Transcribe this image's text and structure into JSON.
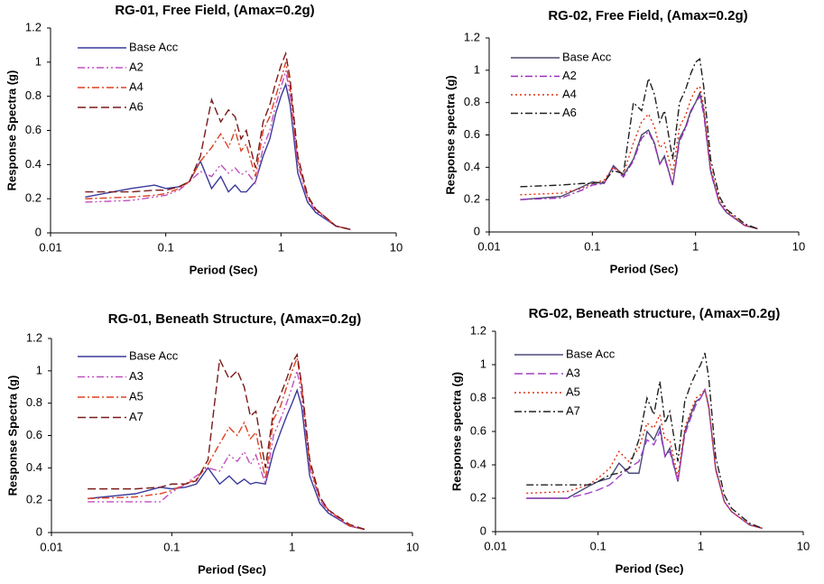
{
  "chart_data": [
    {
      "type": "line",
      "title": "RG-01, Free Field, (Amax=0.2g)",
      "x_label": "Period (Sec)",
      "y_label": "Response Spectra (g)",
      "xscale": "log",
      "xlim": [
        0.01,
        10
      ],
      "xticks": [
        0.01,
        0.1,
        1,
        10
      ],
      "ylim": [
        0,
        1.2
      ],
      "yticks": [
        0,
        0.2,
        0.4,
        0.6,
        0.8,
        1,
        1.2
      ],
      "grid": false,
      "legend": "upper left",
      "x": [
        0.02,
        0.05,
        0.08,
        0.1,
        0.13,
        0.16,
        0.2,
        0.25,
        0.3,
        0.35,
        0.4,
        0.45,
        0.5,
        0.6,
        0.7,
        0.8,
        0.9,
        1.0,
        1.1,
        1.2,
        1.4,
        1.7,
        2,
        3,
        4
      ],
      "series": [
        {
          "name": "Base Acc",
          "color": "#3a3a9c",
          "style": "solid",
          "values": [
            0.21,
            0.26,
            0.28,
            0.26,
            0.27,
            0.3,
            0.42,
            0.26,
            0.33,
            0.24,
            0.28,
            0.24,
            0.24,
            0.3,
            0.45,
            0.55,
            0.7,
            0.8,
            0.87,
            0.75,
            0.35,
            0.18,
            0.12,
            0.04,
            0.02
          ]
        },
        {
          "name": "A2",
          "color": "#c050c0",
          "style": "dash-dot-dot",
          "values": [
            0.18,
            0.19,
            0.21,
            0.22,
            0.25,
            0.3,
            0.36,
            0.33,
            0.4,
            0.35,
            0.38,
            0.34,
            0.36,
            0.29,
            0.5,
            0.6,
            0.75,
            0.85,
            0.95,
            0.8,
            0.4,
            0.2,
            0.13,
            0.04,
            0.02
          ]
        },
        {
          "name": "A4",
          "color": "#e04020",
          "style": "dash-dot",
          "values": [
            0.2,
            0.21,
            0.22,
            0.23,
            0.26,
            0.3,
            0.42,
            0.5,
            0.58,
            0.5,
            0.6,
            0.48,
            0.52,
            0.33,
            0.6,
            0.68,
            0.8,
            0.9,
            1.0,
            0.85,
            0.42,
            0.21,
            0.14,
            0.04,
            0.02
          ]
        },
        {
          "name": "A6",
          "color": "#7b1a1a",
          "style": "dash",
          "values": [
            0.24,
            0.24,
            0.25,
            0.25,
            0.27,
            0.3,
            0.45,
            0.78,
            0.65,
            0.72,
            0.68,
            0.55,
            0.6,
            0.38,
            0.65,
            0.75,
            0.88,
            0.98,
            1.05,
            0.9,
            0.45,
            0.22,
            0.14,
            0.04,
            0.02
          ]
        }
      ]
    },
    {
      "type": "line",
      "title": "RG-02, Free Field, (Amax=0.2g)",
      "x_label": "Period (Sec)",
      "y_label": "Response spectra (g)",
      "xscale": "log",
      "xlim": [
        0.01,
        10
      ],
      "xticks": [
        0.01,
        0.1,
        1,
        10
      ],
      "ylim": [
        0,
        1.2
      ],
      "yticks": [
        0,
        0.2,
        0.4,
        0.6,
        0.8,
        1,
        1.2
      ],
      "grid": false,
      "legend": "upper left",
      "x": [
        0.02,
        0.05,
        0.08,
        0.1,
        0.13,
        0.16,
        0.2,
        0.25,
        0.3,
        0.35,
        0.4,
        0.45,
        0.5,
        0.6,
        0.7,
        0.8,
        0.9,
        1.0,
        1.1,
        1.2,
        1.4,
        1.7,
        2,
        3,
        4
      ],
      "series": [
        {
          "name": "Base Acc",
          "color": "#4a4a6a",
          "style": "solid",
          "values": [
            0.2,
            0.22,
            0.28,
            0.31,
            0.3,
            0.41,
            0.35,
            0.45,
            0.6,
            0.63,
            0.55,
            0.42,
            0.47,
            0.29,
            0.58,
            0.65,
            0.75,
            0.8,
            0.86,
            0.75,
            0.38,
            0.18,
            0.12,
            0.04,
            0.02
          ]
        },
        {
          "name": "A2",
          "color": "#9a30c0",
          "style": "dash-dot",
          "values": [
            0.2,
            0.21,
            0.26,
            0.29,
            0.3,
            0.4,
            0.34,
            0.44,
            0.58,
            0.62,
            0.54,
            0.42,
            0.46,
            0.29,
            0.56,
            0.64,
            0.74,
            0.8,
            0.84,
            0.73,
            0.37,
            0.18,
            0.12,
            0.04,
            0.02
          ]
        },
        {
          "name": "A4",
          "color": "#e03010",
          "style": "dot",
          "values": [
            0.23,
            0.24,
            0.27,
            0.3,
            0.32,
            0.4,
            0.36,
            0.55,
            0.68,
            0.73,
            0.65,
            0.52,
            0.55,
            0.36,
            0.65,
            0.72,
            0.82,
            0.88,
            0.9,
            0.78,
            0.4,
            0.2,
            0.13,
            0.04,
            0.02
          ]
        },
        {
          "name": "A6",
          "color": "#202020",
          "style": "dash-dot",
          "values": [
            0.28,
            0.29,
            0.3,
            0.3,
            0.31,
            0.38,
            0.36,
            0.8,
            0.75,
            0.95,
            0.85,
            0.68,
            0.75,
            0.45,
            0.8,
            0.88,
            0.98,
            1.05,
            1.07,
            0.9,
            0.45,
            0.22,
            0.14,
            0.05,
            0.02
          ]
        }
      ]
    },
    {
      "type": "line",
      "title": "RG-01, Beneath Structure, (Amax=0.2g)",
      "x_label": "Period (Sec)",
      "y_label": "Response Spectra (g)",
      "xscale": "log",
      "xlim": [
        0.01,
        10
      ],
      "xticks": [
        0.01,
        0.1,
        1,
        10
      ],
      "ylim": [
        0,
        1.2
      ],
      "yticks": [
        0,
        0.2,
        0.4,
        0.6,
        0.8,
        1,
        1.2
      ],
      "grid": false,
      "legend": "upper left",
      "x": [
        0.02,
        0.05,
        0.08,
        0.1,
        0.13,
        0.16,
        0.2,
        0.25,
        0.3,
        0.35,
        0.4,
        0.45,
        0.5,
        0.6,
        0.7,
        0.8,
        0.9,
        1.0,
        1.1,
        1.2,
        1.4,
        1.7,
        2,
        3,
        4
      ],
      "series": [
        {
          "name": "Base Acc",
          "color": "#3a3a9c",
          "style": "solid",
          "values": [
            0.21,
            0.24,
            0.28,
            0.27,
            0.28,
            0.3,
            0.4,
            0.3,
            0.35,
            0.3,
            0.33,
            0.3,
            0.31,
            0.3,
            0.5,
            0.62,
            0.72,
            0.8,
            0.88,
            0.78,
            0.35,
            0.18,
            0.12,
            0.04,
            0.02
          ]
        },
        {
          "name": "A3",
          "color": "#c050c0",
          "style": "dash-dot-dot",
          "values": [
            0.19,
            0.19,
            0.19,
            0.25,
            0.3,
            0.35,
            0.4,
            0.38,
            0.48,
            0.44,
            0.5,
            0.42,
            0.48,
            0.3,
            0.6,
            0.7,
            0.8,
            0.9,
            1.0,
            0.85,
            0.4,
            0.2,
            0.13,
            0.04,
            0.02
          ]
        },
        {
          "name": "A5",
          "color": "#e04020",
          "style": "dash-dot",
          "values": [
            0.21,
            0.22,
            0.24,
            0.26,
            0.3,
            0.33,
            0.42,
            0.55,
            0.65,
            0.6,
            0.68,
            0.58,
            0.62,
            0.33,
            0.7,
            0.78,
            0.9,
            1.0,
            1.08,
            0.9,
            0.42,
            0.21,
            0.14,
            0.04,
            0.02
          ]
        },
        {
          "name": "A7",
          "color": "#7b1a1a",
          "style": "dash",
          "values": [
            0.27,
            0.27,
            0.28,
            0.3,
            0.3,
            0.32,
            0.45,
            1.07,
            0.95,
            1.0,
            0.9,
            0.72,
            0.75,
            0.4,
            0.75,
            0.85,
            0.95,
            1.05,
            1.1,
            0.92,
            0.45,
            0.22,
            0.14,
            0.05,
            0.02
          ]
        }
      ]
    },
    {
      "type": "line",
      "title": "RG-02, Beneath structure, (Amax=0.2g)",
      "x_label": "Period (Sec)",
      "y_label": "Response spectra (g)",
      "xscale": "log",
      "xlim": [
        0.01,
        10
      ],
      "xticks": [
        0.01,
        0.1,
        1,
        10
      ],
      "ylim": [
        0,
        1.2
      ],
      "yticks": [
        0,
        0.2,
        0.4,
        0.6,
        0.8,
        1,
        1.2
      ],
      "grid": false,
      "legend": "upper left",
      "x": [
        0.02,
        0.05,
        0.08,
        0.1,
        0.13,
        0.16,
        0.2,
        0.25,
        0.3,
        0.35,
        0.4,
        0.45,
        0.5,
        0.6,
        0.7,
        0.8,
        0.9,
        1.0,
        1.1,
        1.2,
        1.4,
        1.7,
        2,
        3,
        4
      ],
      "series": [
        {
          "name": "Base Acc",
          "color": "#4a4a7a",
          "style": "solid",
          "values": [
            0.2,
            0.2,
            0.27,
            0.3,
            0.32,
            0.41,
            0.35,
            0.35,
            0.6,
            0.55,
            0.63,
            0.45,
            0.5,
            0.3,
            0.6,
            0.7,
            0.78,
            0.8,
            0.85,
            0.75,
            0.38,
            0.18,
            0.12,
            0.04,
            0.02
          ]
        },
        {
          "name": "A3",
          "color": "#a040c8",
          "style": "dash",
          "values": [
            0.2,
            0.2,
            0.23,
            0.25,
            0.28,
            0.33,
            0.38,
            0.42,
            0.55,
            0.52,
            0.6,
            0.45,
            0.48,
            0.3,
            0.58,
            0.68,
            0.76,
            0.8,
            0.85,
            0.74,
            0.37,
            0.18,
            0.12,
            0.04,
            0.02
          ]
        },
        {
          "name": "A5",
          "color": "#e03010",
          "style": "dot",
          "values": [
            0.23,
            0.24,
            0.28,
            0.32,
            0.38,
            0.48,
            0.42,
            0.5,
            0.65,
            0.62,
            0.7,
            0.55,
            0.55,
            0.33,
            0.62,
            0.72,
            0.8,
            0.82,
            0.85,
            0.75,
            0.38,
            0.18,
            0.12,
            0.04,
            0.02
          ]
        },
        {
          "name": "A7",
          "color": "#202020",
          "style": "dash-dot",
          "values": [
            0.28,
            0.28,
            0.28,
            0.3,
            0.34,
            0.35,
            0.38,
            0.55,
            0.8,
            0.7,
            0.9,
            0.65,
            0.72,
            0.42,
            0.78,
            0.88,
            0.95,
            1.0,
            1.07,
            0.92,
            0.45,
            0.22,
            0.14,
            0.05,
            0.02
          ]
        }
      ]
    }
  ]
}
